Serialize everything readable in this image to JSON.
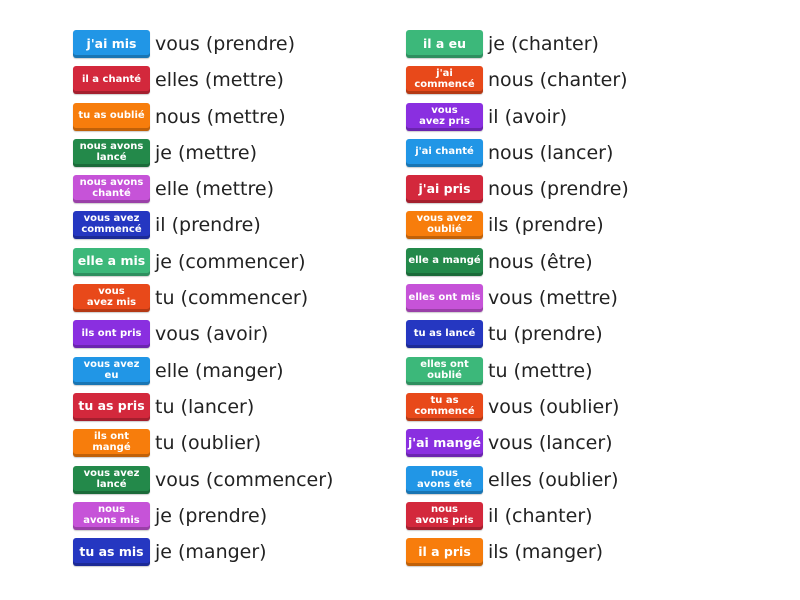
{
  "colors": {
    "blue": "#2196e6",
    "red": "#d3283c",
    "orange": "#f77d0c",
    "darkgreen": "#23894a",
    "pink": "#c653d8",
    "navy": "#2537c1",
    "green": "#3cb87a",
    "redorange": "#e8491a",
    "purple": "#8a2fe0"
  },
  "left": [
    {
      "tile": "j'ai mis",
      "color": "blue",
      "prompt": "vous (prendre)"
    },
    {
      "tile": "il a chanté",
      "color": "red",
      "prompt": "elles (mettre)"
    },
    {
      "tile": "tu as oublié",
      "color": "orange",
      "prompt": "nous (mettre)"
    },
    {
      "tile": "nous avons\nlancé",
      "color": "darkgreen",
      "prompt": "je (mettre)"
    },
    {
      "tile": "nous avons\nchanté",
      "color": "pink",
      "prompt": "elle (mettre)"
    },
    {
      "tile": "vous avez\ncommencé",
      "color": "navy",
      "prompt": "il (prendre)"
    },
    {
      "tile": "elle a mis",
      "color": "green",
      "prompt": "je (commencer)"
    },
    {
      "tile": "vous\navez mis",
      "color": "redorange",
      "prompt": "tu (commencer)"
    },
    {
      "tile": "ils ont pris",
      "color": "purple",
      "prompt": "vous (avoir)"
    },
    {
      "tile": "vous avez eu",
      "color": "blue",
      "prompt": "elle (manger)"
    },
    {
      "tile": "tu as pris",
      "color": "red",
      "prompt": "tu (lancer)"
    },
    {
      "tile": "ils ont mangé",
      "color": "orange",
      "prompt": "tu (oublier)"
    },
    {
      "tile": "vous avez\nlancé",
      "color": "darkgreen",
      "prompt": "vous (commencer)"
    },
    {
      "tile": "nous\navons mis",
      "color": "pink",
      "prompt": "je (prendre)"
    },
    {
      "tile": "tu as mis",
      "color": "navy",
      "prompt": "je (manger)"
    }
  ],
  "right": [
    {
      "tile": "il a eu",
      "color": "green",
      "prompt": "je (chanter)"
    },
    {
      "tile": "j'ai\ncommencé",
      "color": "redorange",
      "prompt": "nous (chanter)"
    },
    {
      "tile": "vous\navez pris",
      "color": "purple",
      "prompt": "il (avoir)"
    },
    {
      "tile": "j'ai chanté",
      "color": "blue",
      "prompt": "nous (lancer)"
    },
    {
      "tile": "j'ai pris",
      "color": "red",
      "prompt": "nous (prendre)"
    },
    {
      "tile": "vous avez\noublié",
      "color": "orange",
      "prompt": "ils (prendre)"
    },
    {
      "tile": "elle a mangé",
      "color": "darkgreen",
      "prompt": "nous (être)"
    },
    {
      "tile": "elles ont mis",
      "color": "pink",
      "prompt": "vous (mettre)"
    },
    {
      "tile": "tu as lancé",
      "color": "navy",
      "prompt": "tu (prendre)"
    },
    {
      "tile": "elles ont\noublié",
      "color": "green",
      "prompt": "tu (mettre)"
    },
    {
      "tile": "tu as\ncommencé",
      "color": "redorange",
      "prompt": "vous (oublier)"
    },
    {
      "tile": "j'ai mangé",
      "color": "purple",
      "prompt": "vous (lancer)"
    },
    {
      "tile": "nous\navons été",
      "color": "blue",
      "prompt": "elles (oublier)"
    },
    {
      "tile": "nous\navons pris",
      "color": "red",
      "prompt": "il (chanter)"
    },
    {
      "tile": "il a pris",
      "color": "orange",
      "prompt": "ils (manger)"
    }
  ]
}
